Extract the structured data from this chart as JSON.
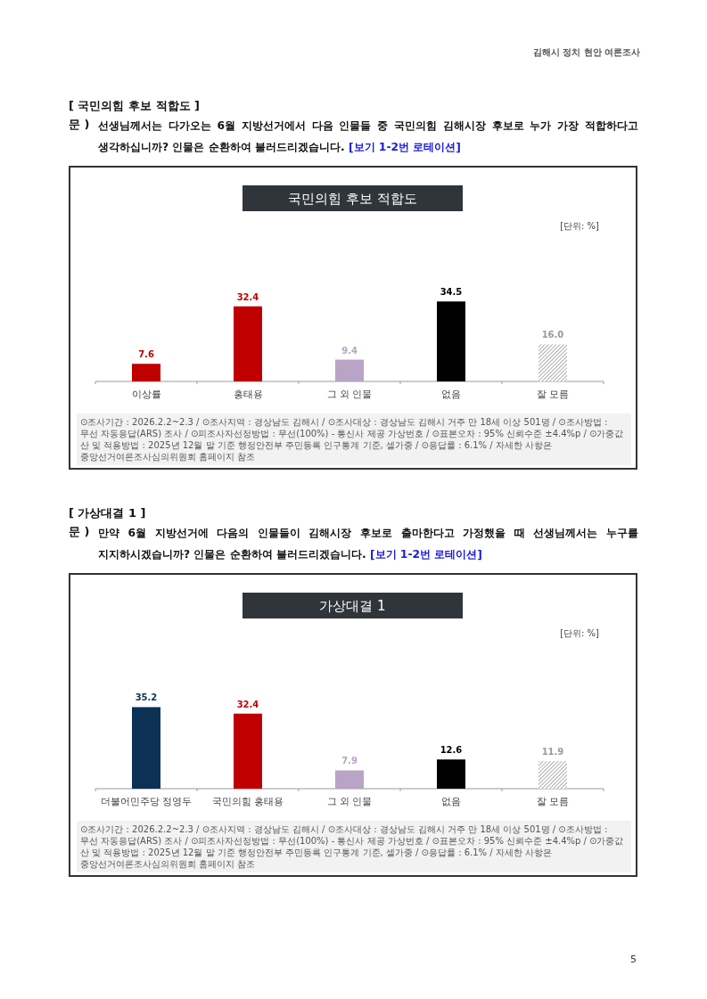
{
  "chart_data": [
    {
      "type": "bar",
      "title": "국민의힘 후보 적합도",
      "categories": [
        "이상률",
        "홍태용",
        "그 외 인물",
        "없음",
        "잘 모름"
      ],
      "values": [
        7.6,
        32.4,
        9.4,
        34.5,
        16.0
      ],
      "value_labels": [
        "7.6",
        "32.4",
        "9.4",
        "34.5",
        "16.0"
      ],
      "colors": [
        "#c00000",
        "#c00000",
        "#b9a3c6",
        "#000000",
        "#9a9a9a"
      ],
      "annotations": [
        "[ 국민의힘 후보 적합도 ]",
        "문 )",
        "선생님께서는 다가오는 6월 지방선거에서 다음 인물들 중 국민의힘 김해시장 후보로 누가 가장 적합하다고 생각하십니까? 인물은 순환하여 불러드리겠습니다.",
        "[보기 1-2번 로테이션]",
        "[단위: %]",
        "⊙조사기간 : 2026.2.2~2.3 / ⊙조사지역 : 경상남도 김해시 / ⊙조사대상 : 경상남도 김해시 거주 만 18세 이상 501명 / ⊙조사방법 : 무선 자동응답(ARS) 조사 / ⊙피조사자선정방법 : 무선(100%) - 통신사 제공 가상번호 / ⊙표본오차 : 95% 신뢰수준 ±4.4%p / ⊙가중값 산 및 적용방법 : 2025년 12월 말 기준 행정안전부 주민등록 인구통계 기준, 셀가중 / ⊙응답률 : 6.1% / 자세한 사항은 중앙선거여론조사심의위원회 홈페이지 참조",
        "김해시 정치 현안 여론조사",
        "5"
      ]
    },
    {
      "type": "bar",
      "title": "가상대결 1",
      "categories": [
        "더불어민주당 정영두",
        "국민의힘 홍태용",
        "그 외 인물",
        "없음",
        "잘 모름"
      ],
      "values": [
        35.2,
        32.4,
        7.9,
        12.6,
        11.9
      ],
      "value_labels": [
        "35.2",
        "32.4",
        "7.9",
        "12.6",
        "11.9"
      ],
      "colors": [
        "#0b3155",
        "#c00000",
        "#b9a3c6",
        "#000000",
        "#9a9a9a"
      ],
      "annotations": [
        "[ 가상대결 1 ]",
        "문 )",
        "만약 6월 지방선거에 다음의 인물들이 김해시장 후보로 출마한다고 가정했을 때 선생님께서는 누구를 지지하시겠습니까? 인물은 순환하여 불러드리겠습니다.",
        "[보기 1-2번 로테이션]",
        "[단위: %]",
        "⊙조사기간 : 2026.2.2~2.3 / ⊙조사지역 : 경상남도 김해시 / ⊙조사대상 : 경상남도 김해시 거주 만 18세 이상 501명 / ⊙조사방법 : 무선 자동응답(ARS) 조사 / ⊙피조사자선정방법 : 무선(100%) - 통신사 제공 가상번호 / ⊙표본오차 : 95% 신뢰수준 ±4.4%p / ⊙가중값 산 및 적용방법 : 2025년 12월 말 기준 행정안전부 주민등록 인구통계 기준, 셀가중 / ⊙응답률 : 6.1% / 자세한 사항은 중앙선거여론조사심의위원회 홈페이지 참조"
      ]
    }
  ]
}
